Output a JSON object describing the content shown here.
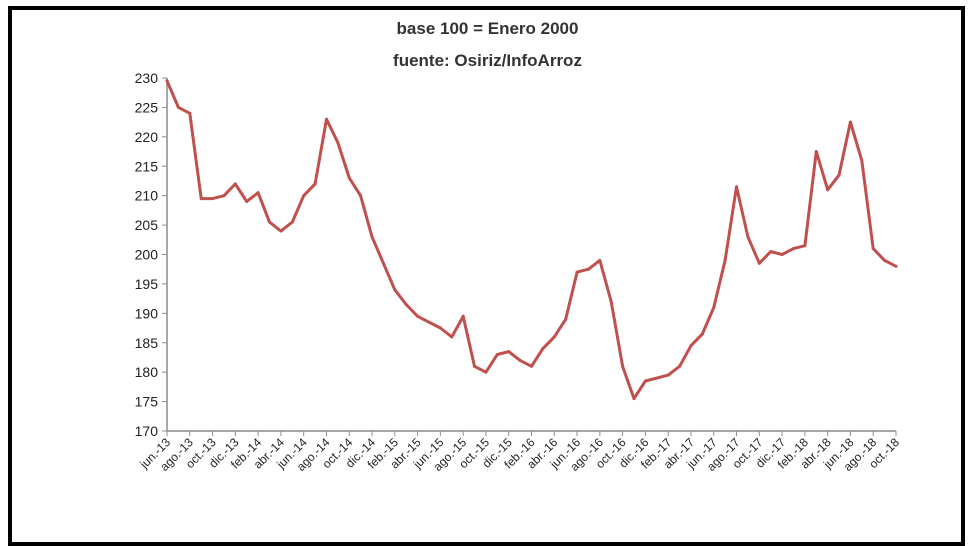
{
  "chart_data": {
    "type": "line",
    "subtitle_lines": [
      "base 100 = Enero 2000",
      "fuente: Osiriz/InfoArroz"
    ],
    "colors": {
      "line": "#c0504d",
      "axis": "#8c8c8c",
      "text": "#222222"
    },
    "ylim": [
      170,
      230
    ],
    "yticks": [
      170,
      175,
      180,
      185,
      190,
      195,
      200,
      205,
      210,
      215,
      220,
      225,
      230
    ],
    "grid": false,
    "legend": "none",
    "xticks": [
      "jun.-13",
      "ago.-13",
      "oct.-13",
      "dic.-13",
      "feb.-14",
      "abr.-14",
      "jun.-14",
      "ago.-14",
      "oct.-14",
      "dic.-14",
      "feb.-15",
      "abr.-15",
      "jun.-15",
      "ago.-15",
      "oct.-15",
      "dic.-15",
      "feb.-16",
      "abr.-16",
      "jun.-16",
      "ago.-16",
      "oct.-16",
      "dic.-16",
      "feb.-17",
      "abr.-17",
      "jun.-17",
      "ago.-17",
      "oct.-17",
      "dic.-17",
      "feb.-18",
      "abr.-18",
      "jun.-18",
      "ago.-18",
      "oct.-18"
    ],
    "series": [
      {
        "x": [
          "jun.-13",
          "jul.-13",
          "ago.-13",
          "sep.-13",
          "oct.-13",
          "nov.-13",
          "dic.-13",
          "ene.-14",
          "feb.-14",
          "mar.-14",
          "abr.-14",
          "may.-14",
          "jun.-14",
          "jul.-14",
          "ago.-14",
          "sep.-14",
          "oct.-14",
          "nov.-14",
          "dic.-14",
          "ene.-15",
          "feb.-15",
          "mar.-15",
          "abr.-15",
          "may.-15",
          "jun.-15",
          "jul.-15",
          "ago.-15",
          "sep.-15",
          "oct.-15",
          "nov.-15",
          "dic.-15",
          "ene.-16",
          "feb.-16",
          "mar.-16",
          "abr.-16",
          "may.-16",
          "jun.-16",
          "jul.-16",
          "ago.-16",
          "sep.-16",
          "oct.-16",
          "nov.-16",
          "dic.-16",
          "ene.-17",
          "feb.-17",
          "mar.-17",
          "abr.-17",
          "may.-17",
          "jun.-17",
          "jul.-17",
          "ago.-17",
          "sep.-17",
          "oct.-17",
          "nov.-17",
          "dic.-17",
          "ene.-18",
          "feb.-18",
          "mar.-18",
          "abr.-18",
          "may.-18",
          "jun.-18",
          "jul.-18",
          "ago.-18",
          "sep.-18",
          "oct.-18"
        ],
        "values": [
          229.5,
          225.0,
          224.0,
          209.5,
          209.5,
          210.0,
          212.0,
          209.0,
          210.5,
          205.5,
          204.0,
          205.5,
          210.0,
          212.0,
          223.0,
          219.0,
          213.0,
          210.0,
          203.0,
          198.5,
          194.0,
          191.5,
          189.5,
          188.5,
          187.5,
          186.0,
          189.5,
          181.0,
          180.0,
          183.0,
          183.5,
          182.0,
          181.0,
          184.0,
          186.0,
          189.0,
          197.0,
          197.5,
          199.0,
          192.0,
          181.0,
          175.5,
          178.5,
          179.0,
          179.5,
          181.0,
          184.5,
          186.5,
          191.0,
          199.0,
          211.5,
          203.0,
          198.5,
          200.5,
          200.0,
          201.0,
          201.5,
          217.5,
          211.0,
          213.5,
          222.5,
          216.0,
          201.0,
          199.0,
          198.0
        ]
      }
    ]
  }
}
